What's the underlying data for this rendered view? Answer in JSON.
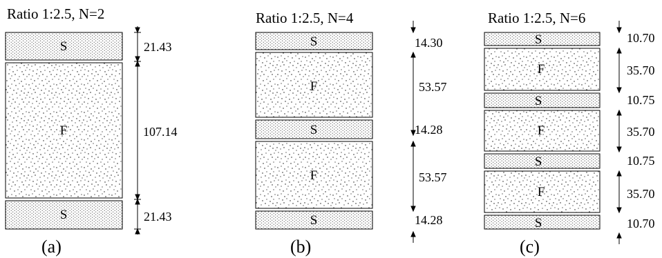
{
  "panels": [
    {
      "title": "Ratio 1:2.5, N=2",
      "caption": "(a)",
      "layers": [
        {
          "label": "S",
          "type": "S",
          "thickness": 21.43
        },
        {
          "label": "F",
          "type": "F",
          "thickness": 107.14
        },
        {
          "label": "S",
          "type": "S",
          "thickness": 21.43
        }
      ],
      "dimensions": [
        "21.43",
        "107.14",
        "21.43"
      ]
    },
    {
      "title": "Ratio 1:2.5, N=4",
      "caption": "(b)",
      "layers": [
        {
          "label": "S",
          "type": "S",
          "thickness": 14.3
        },
        {
          "label": "F",
          "type": "F",
          "thickness": 53.57
        },
        {
          "label": "S",
          "type": "S",
          "thickness": 14.28
        },
        {
          "label": "F",
          "type": "F",
          "thickness": 53.57
        },
        {
          "label": "S",
          "type": "S",
          "thickness": 14.28
        }
      ],
      "dimensions": [
        "14.30",
        "53.57",
        "14.28",
        "53.57",
        "14.28"
      ]
    },
    {
      "title": "Ratio 1:2.5, N=6",
      "caption": "(c)",
      "layers": [
        {
          "label": "S",
          "type": "S",
          "thickness": 10.7
        },
        {
          "label": "F",
          "type": "F",
          "thickness": 35.7
        },
        {
          "label": "S",
          "type": "S",
          "thickness": 10.75
        },
        {
          "label": "F",
          "type": "F",
          "thickness": 35.7
        },
        {
          "label": "S",
          "type": "S",
          "thickness": 10.75
        },
        {
          "label": "F",
          "type": "F",
          "thickness": 35.7
        },
        {
          "label": "S",
          "type": "S",
          "thickness": 10.7
        }
      ],
      "dimensions": [
        "10.70",
        "35.70",
        "10.75",
        "35.70",
        "10.75",
        "35.70",
        "10.70"
      ]
    }
  ]
}
